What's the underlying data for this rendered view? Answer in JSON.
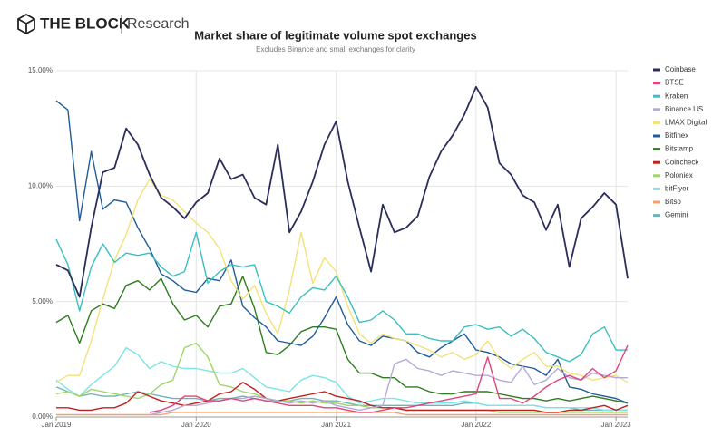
{
  "header": {
    "logo": "THE BLOCK",
    "section": "Research"
  },
  "chart_data": {
    "type": "line",
    "title": "Market share of legitimate volume spot exchanges",
    "subtitle": "Excludes Binance and small exchanges for clarity",
    "categories": [
      "Jan 2019",
      null,
      null,
      null,
      null,
      null,
      null,
      null,
      null,
      null,
      null,
      null,
      "Jan 2020",
      null,
      null,
      null,
      null,
      null,
      null,
      null,
      null,
      null,
      null,
      null,
      "Jan 2021",
      null,
      null,
      null,
      null,
      null,
      null,
      null,
      null,
      null,
      null,
      null,
      "Jan 2022",
      null,
      null,
      null,
      null,
      null,
      null,
      null,
      null,
      null,
      null,
      null,
      "Jan 2023",
      null
    ],
    "ylim": [
      0,
      15
    ],
    "yticks": [
      {
        "value": 0,
        "label": "0.00%"
      },
      {
        "value": 5,
        "label": "5.00%"
      },
      {
        "value": 10,
        "label": "10.00%"
      },
      {
        "value": 15,
        "label": "15.00%"
      }
    ],
    "grid": true,
    "legend": "right",
    "series": [
      {
        "name": "Coinbase",
        "color": "#2b2d5a",
        "values": [
          6.6,
          6.35,
          5.2,
          8.2,
          10.6,
          10.8,
          12.5,
          11.8,
          10.5,
          9.5,
          9.1,
          8.6,
          9.3,
          9.7,
          11.2,
          10.3,
          10.5,
          9.5,
          9.2,
          11.8,
          8.0,
          8.9,
          10.2,
          11.8,
          12.8,
          10.2,
          8.2,
          6.3,
          9.2,
          8.0,
          8.2,
          8.7,
          10.4,
          11.5,
          12.2,
          13.1,
          14.3,
          13.4,
          11.0,
          10.5,
          9.6,
          9.3,
          8.1,
          9.2,
          6.5,
          8.6,
          9.1,
          9.7,
          9.2,
          6.0
        ]
      },
      {
        "name": "BTSE",
        "color": "#e0457b",
        "values": [
          null,
          null,
          null,
          null,
          null,
          null,
          null,
          null,
          0.2,
          0.3,
          0.5,
          0.9,
          0.9,
          0.7,
          0.7,
          0.8,
          0.7,
          0.8,
          0.7,
          0.6,
          0.5,
          0.5,
          0.5,
          0.4,
          0.4,
          0.3,
          0.2,
          0.2,
          0.3,
          0.4,
          0.4,
          0.5,
          0.6,
          0.7,
          0.8,
          0.9,
          1.0,
          2.6,
          0.8,
          0.8,
          0.6,
          0.9,
          1.3,
          1.6,
          1.8,
          1.6,
          2.1,
          1.7,
          2.0,
          3.1
        ]
      },
      {
        "name": "Kraken",
        "color": "#3bbfbf",
        "values": [
          7.7,
          6.6,
          4.6,
          6.5,
          7.5,
          6.7,
          7.1,
          7.0,
          7.1,
          6.5,
          6.1,
          6.3,
          8.0,
          5.8,
          6.3,
          6.6,
          6.5,
          6.6,
          5.0,
          4.8,
          4.5,
          5.2,
          5.6,
          5.5,
          6.1,
          5.2,
          4.1,
          4.2,
          4.6,
          4.2,
          3.6,
          3.6,
          3.4,
          3.3,
          3.3,
          3.9,
          4.0,
          3.8,
          3.9,
          3.5,
          3.8,
          3.4,
          2.8,
          2.6,
          2.4,
          2.7,
          3.6,
          3.9,
          2.9,
          2.9
        ]
      },
      {
        "name": "Binance US",
        "color": "#b6a9d9",
        "values": [
          null,
          null,
          null,
          null,
          null,
          null,
          null,
          null,
          0.1,
          0.2,
          0.3,
          0.5,
          0.5,
          0.6,
          0.7,
          0.8,
          0.8,
          0.9,
          0.8,
          0.7,
          0.6,
          0.7,
          0.6,
          0.7,
          0.5,
          0.4,
          0.3,
          0.4,
          0.5,
          2.3,
          2.5,
          2.1,
          2.0,
          1.8,
          2.0,
          1.9,
          1.8,
          1.8,
          1.6,
          1.5,
          2.2,
          1.4,
          1.6,
          2.1,
          1.7,
          1.6,
          1.9,
          1.8,
          1.7,
          1.7
        ]
      },
      {
        "name": "LMAX Digital",
        "color": "#f2e27a",
        "values": [
          1.5,
          1.8,
          1.8,
          3.3,
          5.1,
          6.8,
          7.9,
          9.4,
          10.3,
          9.6,
          9.4,
          8.9,
          8.4,
          8.0,
          7.3,
          5.9,
          5.1,
          5.7,
          4.5,
          3.6,
          5.5,
          8.0,
          5.8,
          6.9,
          6.3,
          4.8,
          3.6,
          3.2,
          3.6,
          3.4,
          3.3,
          3.1,
          2.9,
          2.6,
          2.8,
          2.5,
          2.7,
          3.3,
          2.5,
          2.1,
          2.5,
          2.8,
          2.2,
          2.2,
          1.9,
          1.8,
          1.6,
          1.7,
          1.8,
          1.5
        ]
      },
      {
        "name": "Bitfinex",
        "color": "#1f5c99",
        "values": [
          13.7,
          13.3,
          8.5,
          11.5,
          9.0,
          9.4,
          9.3,
          8.2,
          7.3,
          6.2,
          5.9,
          5.5,
          5.4,
          6.0,
          5.9,
          6.8,
          4.8,
          4.3,
          3.9,
          3.3,
          3.2,
          3.1,
          3.5,
          4.3,
          5.2,
          4.0,
          3.3,
          3.1,
          3.5,
          3.4,
          3.3,
          2.8,
          2.6,
          3.0,
          3.3,
          3.6,
          2.9,
          2.8,
          2.6,
          2.3,
          2.2,
          2.1,
          1.8,
          2.5,
          1.3,
          1.2,
          1.0,
          0.9,
          0.8,
          0.6
        ]
      },
      {
        "name": "Bitstamp",
        "color": "#2e7d1f",
        "values": [
          4.1,
          4.4,
          3.2,
          4.6,
          4.9,
          4.7,
          5.7,
          5.9,
          5.5,
          6.0,
          4.9,
          4.2,
          4.4,
          3.9,
          4.8,
          4.9,
          6.1,
          4.7,
          2.8,
          2.7,
          3.1,
          3.7,
          3.9,
          3.9,
          3.8,
          2.5,
          1.9,
          1.9,
          1.7,
          1.7,
          1.3,
          1.3,
          1.1,
          1.0,
          1.0,
          1.1,
          1.1,
          1.1,
          1.0,
          0.9,
          0.8,
          0.8,
          0.7,
          0.8,
          0.7,
          0.8,
          0.9,
          0.8,
          0.7,
          0.6
        ]
      },
      {
        "name": "Coincheck",
        "color": "#c0201e",
        "values": [
          0.4,
          0.4,
          0.3,
          0.3,
          0.4,
          0.4,
          0.6,
          1.1,
          0.9,
          0.7,
          0.6,
          0.5,
          0.6,
          0.7,
          1.0,
          1.1,
          1.5,
          1.2,
          0.8,
          0.7,
          0.8,
          0.9,
          1.0,
          1.1,
          0.9,
          0.8,
          0.7,
          0.5,
          0.4,
          0.4,
          0.3,
          0.3,
          0.3,
          0.3,
          0.3,
          0.3,
          0.3,
          0.3,
          0.3,
          0.3,
          0.3,
          0.3,
          0.2,
          0.2,
          0.3,
          0.3,
          0.4,
          0.5,
          0.3,
          0.5
        ]
      },
      {
        "name": "Poloniex",
        "color": "#9ed66a",
        "values": [
          1.0,
          1.1,
          0.9,
          1.2,
          1.1,
          1.0,
          0.9,
          0.8,
          1.0,
          1.4,
          1.6,
          3.0,
          3.2,
          2.6,
          1.4,
          1.3,
          1.1,
          1.0,
          0.8,
          0.7,
          0.7,
          0.6,
          0.7,
          0.6,
          0.6,
          0.5,
          0.5,
          0.4,
          0.4,
          0.4,
          0.3,
          0.3,
          0.3,
          0.3,
          0.3,
          0.3,
          0.3,
          0.3,
          0.2,
          0.2,
          0.2,
          0.2,
          0.2,
          0.2,
          0.2,
          0.2,
          0.2,
          0.2,
          0.2,
          0.2
        ]
      },
      {
        "name": "bitFlyer",
        "color": "#7fe3e8",
        "values": [
          1.6,
          1.2,
          0.9,
          1.4,
          1.8,
          2.2,
          3.0,
          2.7,
          2.1,
          2.4,
          2.2,
          2.1,
          2.1,
          2.0,
          1.9,
          1.9,
          2.1,
          1.7,
          1.3,
          1.2,
          1.1,
          1.6,
          1.8,
          1.7,
          1.5,
          0.9,
          0.6,
          0.7,
          0.8,
          0.8,
          0.7,
          0.6,
          0.6,
          0.6,
          0.6,
          0.7,
          0.6,
          0.5,
          0.5,
          0.5,
          0.5,
          0.5,
          0.4,
          0.4,
          0.4,
          0.4,
          0.4,
          0.3,
          0.3,
          0.3
        ]
      },
      {
        "name": "Bitso",
        "color": "#f0a46c",
        "values": [
          0.1,
          0.1,
          0.1,
          0.1,
          0.1,
          0.1,
          0.1,
          0.1,
          0.1,
          0.1,
          0.2,
          0.2,
          0.2,
          0.2,
          0.2,
          0.2,
          0.2,
          0.2,
          0.2,
          0.2,
          0.2,
          0.2,
          0.2,
          0.2,
          0.2,
          0.2,
          0.2,
          0.2,
          0.2,
          0.2,
          0.1,
          0.1,
          0.1,
          0.1,
          0.1,
          0.1,
          0.1,
          0.1,
          0.1,
          0.1,
          0.1,
          0.1,
          0.1,
          0.1,
          0.1,
          0.1,
          0.1,
          0.1,
          0.1,
          0.1
        ]
      },
      {
        "name": "Gemini",
        "color": "#6fb3b8",
        "values": [
          1.3,
          1.1,
          0.9,
          1.0,
          0.9,
          0.9,
          1.0,
          1.1,
          1.0,
          0.9,
          0.8,
          0.8,
          0.8,
          0.7,
          0.8,
          0.8,
          0.9,
          0.8,
          0.7,
          0.7,
          0.7,
          0.8,
          0.8,
          0.7,
          0.7,
          0.6,
          0.5,
          0.5,
          0.5,
          0.5,
          0.5,
          0.5,
          0.5,
          0.5,
          0.5,
          0.6,
          0.6,
          0.5,
          0.5,
          0.5,
          0.5,
          0.5,
          0.4,
          0.4,
          0.4,
          0.3,
          0.3,
          0.3,
          0.3,
          0.3
        ]
      }
    ]
  }
}
